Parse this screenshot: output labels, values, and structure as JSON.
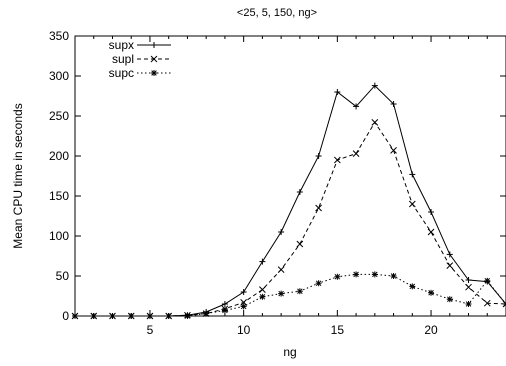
{
  "chart_data": {
    "type": "line",
    "title": "<25, 5, 150, ng>",
    "xlabel": "ng",
    "ylabel": "Mean CPU time in seconds",
    "xlim": [
      1,
      24
    ],
    "ylim": [
      0,
      350
    ],
    "xticks": [
      5,
      10,
      15,
      20
    ],
    "yticks": [
      0,
      50,
      100,
      150,
      200,
      250,
      300,
      350
    ],
    "grid": false,
    "legend_position": "top-left",
    "x": [
      1,
      2,
      3,
      4,
      5,
      6,
      7,
      8,
      9,
      10,
      11,
      12,
      13,
      14,
      15,
      16,
      17,
      18,
      19,
      20,
      21,
      22,
      23,
      24
    ],
    "series": [
      {
        "name": "supx",
        "style": "solid",
        "marker": "plus",
        "color": "#000000",
        "values": [
          0,
          0,
          0,
          0,
          0,
          0,
          1,
          5,
          15,
          30,
          68,
          105,
          155,
          200,
          280,
          262,
          288,
          265,
          177,
          130,
          77,
          45,
          43,
          15
        ]
      },
      {
        "name": "supl",
        "style": "dashed",
        "marker": "x",
        "color": "#000000",
        "values": [
          0,
          0,
          0,
          0,
          0,
          0,
          1,
          3,
          9,
          17,
          33,
          58,
          90,
          135,
          195,
          203,
          242,
          207,
          140,
          105,
          63,
          36,
          16,
          15
        ]
      },
      {
        "name": "supc",
        "style": "dotted",
        "marker": "star",
        "color": "#000000",
        "values": [
          0,
          0,
          0,
          0,
          0,
          0,
          0,
          3,
          7,
          12,
          24,
          28,
          31,
          41,
          49,
          52,
          52,
          50,
          37,
          29,
          21,
          15,
          44,
          15
        ]
      }
    ]
  }
}
